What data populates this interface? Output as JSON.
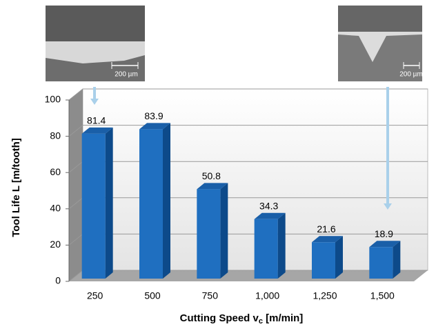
{
  "chart_data": {
    "type": "bar3d",
    "ylabel": "Tool Life L [m/tooth]",
    "xlabel": [
      "Cutting Speed v",
      "c",
      " [m/min]"
    ],
    "categories": [
      "250",
      "500",
      "750",
      "1,000",
      "1,250",
      "1,500"
    ],
    "values": [
      81.4,
      83.9,
      50.8,
      34.3,
      21.6,
      18.9
    ],
    "color": "#1f6fc0",
    "ylim": [
      0,
      100
    ],
    "yticks": [
      0,
      20,
      40,
      60,
      80,
      100
    ],
    "grid": true,
    "scale_bar_labels": [
      "200 µm",
      "200 µm"
    ]
  }
}
